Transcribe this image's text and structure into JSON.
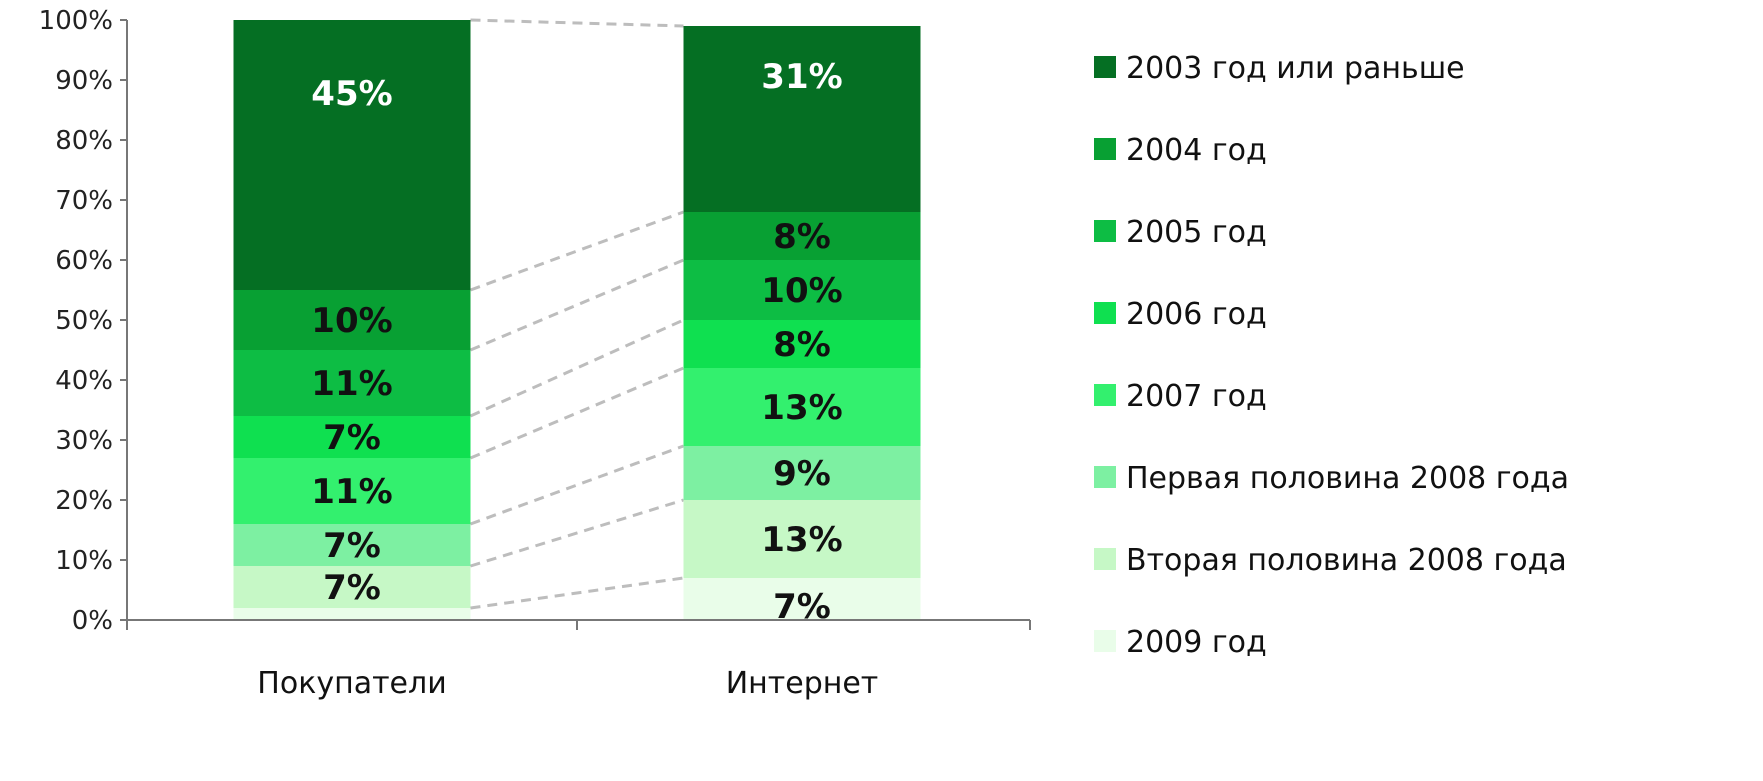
{
  "chart_data": {
    "type": "bar",
    "stacked": true,
    "percent": true,
    "categories": [
      "Покупатели",
      "Интернет"
    ],
    "series": [
      {
        "name": "2009 год",
        "color": "#e9fde9",
        "values": [
          2,
          7
        ],
        "labels": [
          "",
          "7%"
        ]
      },
      {
        "name": "Вторая половина 2008 года",
        "color": "#c6f8c6",
        "values": [
          7,
          13
        ],
        "labels": [
          "7%",
          "13%"
        ]
      },
      {
        "name": "Первая половина 2008 года",
        "color": "#7df0a2",
        "values": [
          7,
          9
        ],
        "labels": [
          "7%",
          "9%"
        ]
      },
      {
        "name": "2007 год",
        "color": "#33f06e",
        "values": [
          11,
          13
        ],
        "labels": [
          "11%",
          "13%"
        ]
      },
      {
        "name": "2006 год",
        "color": "#0fe050",
        "values": [
          7,
          8
        ],
        "labels": [
          "7%",
          "8%"
        ]
      },
      {
        "name": "2005 год",
        "color": "#0dbd44",
        "values": [
          11,
          10
        ],
        "labels": [
          "11%",
          "10%"
        ]
      },
      {
        "name": "2004 год",
        "color": "#08a033",
        "values": [
          10,
          8
        ],
        "labels": [
          "10%",
          "8%"
        ]
      },
      {
        "name": "2003 год или раньше",
        "color": "#056f23",
        "values": [
          45,
          31
        ],
        "labels": [
          "45%",
          "31%"
        ]
      }
    ],
    "ylim": [
      0,
      100
    ],
    "yticks": [
      "0%",
      "10%",
      "20%",
      "30%",
      "40%",
      "50%",
      "60%",
      "70%",
      "80%",
      "90%",
      "100%"
    ],
    "series_lines": true,
    "legend_position": "right",
    "legend_order": [
      "2003 год или раньше",
      "2004 год",
      "2005 год",
      "2006 год",
      "2007 год",
      "Первая половина 2008 года",
      "Вторая половина 2008 года",
      "2009 год"
    ],
    "title": "",
    "xlabel": "",
    "ylabel": ""
  }
}
